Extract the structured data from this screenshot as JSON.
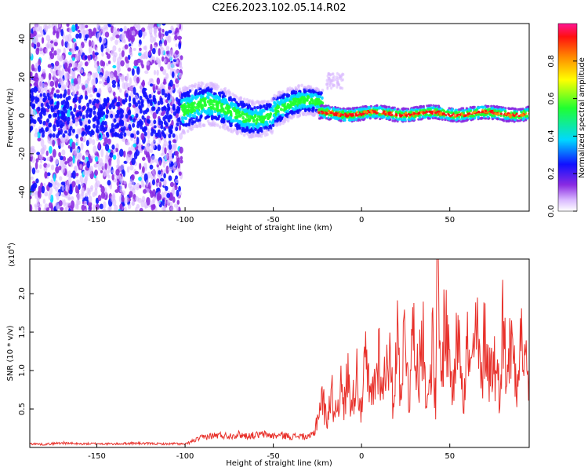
{
  "title": "C2E6.2023.102.05.14.R02",
  "chart_data": [
    {
      "type": "heatmap",
      "xlabel": "Height of straight line (km)",
      "ylabel": "Frequency (Hz)",
      "xlim": [
        -188,
        95
      ],
      "ylim": [
        -50,
        48
      ],
      "xticks": [
        -150,
        -100,
        -50,
        0,
        50
      ],
      "yticks": [
        40,
        20,
        0,
        -20,
        -40
      ],
      "colorbar": {
        "label": "Normalized spectral amplitude",
        "range": [
          0.0,
          1.0
        ],
        "ticks": [
          0.0,
          0.2,
          0.4,
          0.6,
          0.8
        ],
        "tick_labels": [
          "0.0",
          "0.2",
          "0.4",
          "0.6",
          "0.8"
        ]
      }
    },
    {
      "type": "line",
      "xlabel": "Height of straight line (km)",
      "ylabel": "SNR (10 * v/v)",
      "scale_label": "(x10",
      "scale_exp": "4",
      "scale_close": ")",
      "xlim": [
        -188,
        95
      ],
      "ylim": [
        0,
        24500
      ],
      "xticks": [
        -150,
        -100,
        -50,
        0,
        50
      ],
      "yticks": [
        5000,
        10000,
        15000,
        20000
      ],
      "ytick_labels": [
        "0.5",
        "1.0",
        "1.5",
        "2.0"
      ],
      "series": [
        {
          "color": "#e8302a",
          "x": [
            -188,
            -180,
            -170,
            -160,
            -150,
            -140,
            -130,
            -120,
            -110,
            -105,
            -100,
            -95,
            -90,
            -85,
            -80,
            -75,
            -70,
            -65,
            -60,
            -55,
            -50,
            -45,
            -40,
            -35,
            -30,
            -27,
            -25,
            -22,
            -20,
            -17,
            -15,
            -12,
            -10,
            -8,
            -5,
            -3,
            0,
            2,
            5,
            8,
            10,
            12,
            15,
            18,
            20,
            22,
            25,
            27,
            30,
            32,
            35,
            37,
            40,
            42,
            43,
            45,
            47,
            50,
            52,
            55,
            58,
            60,
            62,
            65,
            68,
            70,
            72,
            75,
            78,
            80,
            82,
            85,
            88,
            90,
            93,
            95
          ],
          "y": [
            500,
            400,
            600,
            450,
            500,
            450,
            550,
            500,
            450,
            500,
            400,
            900,
            1300,
            1500,
            1600,
            1500,
            1700,
            1500,
            1600,
            1700,
            1500,
            1600,
            1400,
            1500,
            1300,
            1800,
            4000,
            6500,
            3500,
            7000,
            4500,
            8000,
            5000,
            9500,
            5500,
            10500,
            4500,
            11500,
            6000,
            9000,
            12500,
            7000,
            13500,
            5500,
            15500,
            8000,
            16000,
            6000,
            18500,
            7500,
            17500,
            4000,
            14500,
            5000,
            24000,
            7500,
            17000,
            11500,
            7000,
            17500,
            6500,
            13500,
            9000,
            15500,
            8000,
            16500,
            9500,
            11500,
            7500,
            16000,
            10500,
            13500,
            9500,
            15000,
            10500,
            9500
          ]
        }
      ]
    }
  ]
}
